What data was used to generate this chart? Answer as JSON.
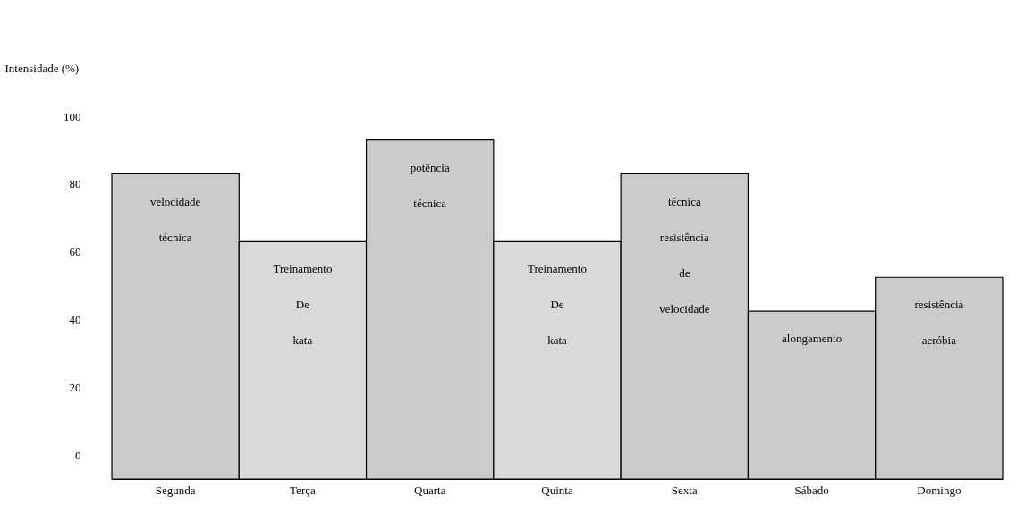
{
  "chart_data": {
    "type": "bar",
    "ylabel": "Intensidade (%)",
    "categories": [
      "Segunda",
      "Terça",
      "Quarta",
      "Quinta",
      "Sexta",
      "Sábado",
      "Domingo"
    ],
    "base": [
      -7,
      -7,
      -7,
      -7,
      -7,
      -7,
      -7
    ],
    "values": [
      90,
      70,
      100,
      70,
      90,
      49.5,
      59.5
    ],
    "colors": [
      "#cdcacb",
      "#d9d9d9",
      "#cdcacb",
      "#d9d9d9",
      "#cdcacb",
      "#cdcacb",
      "#cdcacb"
    ],
    "ylim": [
      -7,
      100
    ],
    "yticks": [
      0,
      20,
      40,
      60,
      80,
      100
    ],
    "grid": false,
    "annotations": [
      "velocidade\ntécnica",
      "Treinamento\nDe\nkata",
      "potência\ntécnica",
      "Treinamento\nDe\nkata",
      "técnica\nresistência\nde\nvelocidade",
      "alongamento",
      "resistência\naeróbia"
    ]
  }
}
